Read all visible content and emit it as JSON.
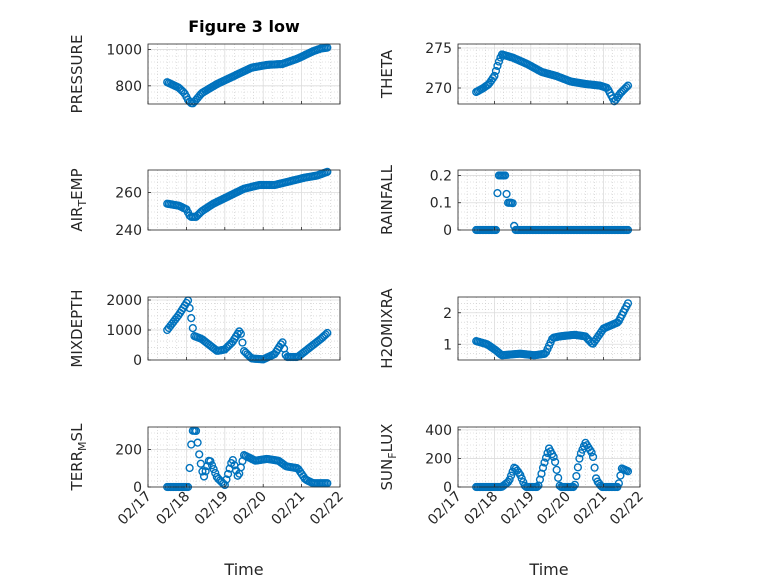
{
  "figure": {
    "title": "Figure 3 low",
    "marker_color": "#0072BD",
    "grid_major_color": "#dcdcdc",
    "grid_minor_color": "#c8c8c8",
    "background": "#ffffff"
  },
  "chart_data": [
    {
      "type": "scatter",
      "title": "Figure 3 low",
      "ylabel": "PRESSURE",
      "xlabel": "",
      "ylim": [
        700,
        1030
      ],
      "yticks": [
        800,
        1000
      ],
      "xlim": [
        "02/17",
        "02/22"
      ],
      "xticks": [
        "02/17",
        "02/18",
        "02/19",
        "02/20",
        "02/21",
        "02/22"
      ],
      "x_marker_step_days": 0.0417,
      "x_marker_start": "02/17 12:00",
      "series": [
        {
          "x_range": [
            "02/17 12:00",
            "02/21 16:00"
          ],
          "y_profile": [
            [
              0,
              820
            ],
            [
              0.1,
              810
            ],
            [
              0.3,
              790
            ],
            [
              0.45,
              760
            ],
            [
              0.55,
              720
            ],
            [
              0.65,
              700
            ],
            [
              0.72,
              715
            ],
            [
              0.9,
              760
            ],
            [
              1.3,
              810
            ],
            [
              1.8,
              860
            ],
            [
              2.2,
              900
            ],
            [
              2.6,
              915
            ],
            [
              3.0,
              920
            ],
            [
              3.4,
              950
            ],
            [
              3.8,
              990
            ],
            [
              4.0,
              1005
            ],
            [
              4.17,
              1010
            ]
          ]
        }
      ],
      "grid": true,
      "minor_grid": true
    },
    {
      "type": "scatter",
      "title": "",
      "ylabel": "THETA",
      "xlabel": "",
      "ylim": [
        268,
        275.5
      ],
      "yticks": [
        270,
        275
      ],
      "xlim": [
        "02/17",
        "02/22"
      ],
      "xticks": [
        "02/17",
        "02/18",
        "02/19",
        "02/20",
        "02/21",
        "02/22"
      ],
      "series": [
        {
          "x_range": [
            "02/17 12:00",
            "02/21 16:00"
          ],
          "y_profile": [
            [
              0,
              269.5
            ],
            [
              0.2,
              270
            ],
            [
              0.35,
              270.5
            ],
            [
              0.5,
              271.5
            ],
            [
              0.6,
              273
            ],
            [
              0.7,
              274.2
            ],
            [
              1.0,
              273.8
            ],
            [
              1.4,
              273
            ],
            [
              1.8,
              272
            ],
            [
              2.2,
              271.5
            ],
            [
              2.6,
              270.8
            ],
            [
              3.0,
              270.5
            ],
            [
              3.4,
              270.3
            ],
            [
              3.6,
              270
            ],
            [
              3.8,
              268.3
            ],
            [
              3.95,
              269.3
            ],
            [
              4.17,
              270.3
            ]
          ]
        }
      ],
      "grid": true,
      "minor_grid": true
    },
    {
      "type": "scatter",
      "title": "",
      "ylabel": "AIR_TEMP",
      "xlabel": "",
      "ylim": [
        240,
        272
      ],
      "yticks": [
        240,
        260
      ],
      "xlim": [
        "02/17",
        "02/22"
      ],
      "xticks": [
        "02/17",
        "02/18",
        "02/19",
        "02/20",
        "02/21",
        "02/22"
      ],
      "series": [
        {
          "x_range": [
            "02/17 12:00",
            "02/21 16:00"
          ],
          "y_profile": [
            [
              0,
              254
            ],
            [
              0.3,
              253
            ],
            [
              0.5,
              251
            ],
            [
              0.6,
              247
            ],
            [
              0.75,
              247
            ],
            [
              0.9,
              250
            ],
            [
              1.2,
              254
            ],
            [
              1.6,
              258
            ],
            [
              2.0,
              262
            ],
            [
              2.4,
              264
            ],
            [
              2.8,
              264
            ],
            [
              3.2,
              266
            ],
            [
              3.6,
              268
            ],
            [
              3.9,
              269
            ],
            [
              4.17,
              271
            ]
          ]
        }
      ],
      "grid": true,
      "minor_grid": true
    },
    {
      "type": "scatter",
      "title": "",
      "ylabel": "RAINFALL",
      "xlabel": "",
      "ylim": [
        0,
        0.22
      ],
      "yticks": [
        0,
        0.1,
        0.2
      ],
      "xlim": [
        "02/17",
        "02/22"
      ],
      "xticks": [
        "02/17",
        "02/18",
        "02/19",
        "02/20",
        "02/21",
        "02/22"
      ],
      "series": [
        {
          "x_range": [
            "02/17 12:00",
            "02/21 16:00"
          ],
          "y_profile": [
            [
              0,
              0
            ],
            [
              0.55,
              0
            ],
            [
              0.6,
              0.2
            ],
            [
              0.8,
              0.2
            ],
            [
              0.85,
              0.1
            ],
            [
              0.95,
              0.1
            ],
            [
              1.0,
              0.1
            ],
            [
              1.05,
              0
            ],
            [
              4.17,
              0
            ]
          ]
        }
      ],
      "grid": true,
      "minor_grid": true
    },
    {
      "type": "scatter",
      "title": "",
      "ylabel": "MIXDEPTH",
      "xlabel": "",
      "ylim": [
        0,
        2100
      ],
      "yticks": [
        0,
        1000,
        2000
      ],
      "xlim": [
        "02/17",
        "02/22"
      ],
      "xticks": [
        "02/17",
        "02/18",
        "02/19",
        "02/20",
        "02/21",
        "02/22"
      ],
      "series": [
        {
          "x_range": [
            "02/17 12:00",
            "02/21 16:00"
          ],
          "y_profile": [
            [
              0,
              1000
            ],
            [
              0.3,
              1500
            ],
            [
              0.55,
              2000
            ],
            [
              0.7,
              800
            ],
            [
              0.9,
              700
            ],
            [
              1.1,
              500
            ],
            [
              1.3,
              300
            ],
            [
              1.5,
              350
            ],
            [
              1.7,
              600
            ],
            [
              1.9,
              1000
            ],
            [
              2.0,
              300
            ],
            [
              2.2,
              50
            ],
            [
              2.5,
              20
            ],
            [
              2.8,
              200
            ],
            [
              3.0,
              600
            ],
            [
              3.1,
              100
            ],
            [
              3.4,
              100
            ],
            [
              3.7,
              400
            ],
            [
              4.0,
              700
            ],
            [
              4.17,
              900
            ]
          ]
        }
      ],
      "grid": true,
      "minor_grid": true
    },
    {
      "type": "scatter",
      "title": "",
      "ylabel": "H2OMIXRA",
      "xlabel": "",
      "ylim": [
        0.5,
        2.5
      ],
      "yticks": [
        1,
        2
      ],
      "xlim": [
        "02/17",
        "02/22"
      ],
      "xticks": [
        "02/17",
        "02/18",
        "02/19",
        "02/20",
        "02/21",
        "02/22"
      ],
      "series": [
        {
          "x_range": [
            "02/17 12:00",
            "02/21 16:00"
          ],
          "y_profile": [
            [
              0,
              1.1
            ],
            [
              0.3,
              1.0
            ],
            [
              0.55,
              0.8
            ],
            [
              0.7,
              0.65
            ],
            [
              1.2,
              0.7
            ],
            [
              1.6,
              0.65
            ],
            [
              1.9,
              0.7
            ],
            [
              2.1,
              1.2
            ],
            [
              2.3,
              1.25
            ],
            [
              2.7,
              1.3
            ],
            [
              3.0,
              1.25
            ],
            [
              3.2,
              1.0
            ],
            [
              3.5,
              1.5
            ],
            [
              3.9,
              1.7
            ],
            [
              4.17,
              2.3
            ]
          ]
        }
      ],
      "grid": true,
      "minor_grid": true
    },
    {
      "type": "scatter",
      "title": "",
      "ylabel": "TERR_MSL",
      "xlabel": "Time",
      "ylim": [
        0,
        320
      ],
      "yticks": [
        0,
        200
      ],
      "xlim": [
        "02/17",
        "02/22"
      ],
      "xticks": [
        "02/17",
        "02/18",
        "02/19",
        "02/20",
        "02/21",
        "02/22"
      ],
      "series": [
        {
          "x_range": [
            "02/17 12:00",
            "02/21 16:00"
          ],
          "y_profile": [
            [
              0,
              0
            ],
            [
              0.55,
              0
            ],
            [
              0.65,
              300
            ],
            [
              0.75,
              300
            ],
            [
              0.85,
              150
            ],
            [
              0.95,
              50
            ],
            [
              1.1,
              150
            ],
            [
              1.3,
              50
            ],
            [
              1.5,
              10
            ],
            [
              1.7,
              150
            ],
            [
              1.85,
              50
            ],
            [
              2.0,
              170
            ],
            [
              2.3,
              140
            ],
            [
              2.6,
              150
            ],
            [
              2.9,
              140
            ],
            [
              3.1,
              110
            ],
            [
              3.4,
              100
            ],
            [
              3.6,
              40
            ],
            [
              3.8,
              20
            ],
            [
              4.17,
              20
            ]
          ]
        }
      ],
      "grid": true,
      "minor_grid": true
    },
    {
      "type": "scatter",
      "title": "",
      "ylabel": "SUN_FLUX",
      "xlabel": "Time",
      "ylim": [
        0,
        420
      ],
      "yticks": [
        0,
        200,
        400
      ],
      "xlim": [
        "02/17",
        "02/22"
      ],
      "xticks": [
        "02/17",
        "02/18",
        "02/19",
        "02/20",
        "02/21",
        "02/22"
      ],
      "series": [
        {
          "x_range": [
            "02/17 12:00",
            "02/21 16:00"
          ],
          "y_profile": [
            [
              0,
              0
            ],
            [
              0.5,
              0
            ],
            [
              0.7,
              0
            ],
            [
              0.9,
              40
            ],
            [
              1.05,
              140
            ],
            [
              1.2,
              90
            ],
            [
              1.35,
              0
            ],
            [
              1.7,
              0
            ],
            [
              1.85,
              150
            ],
            [
              2.0,
              270
            ],
            [
              2.15,
              200
            ],
            [
              2.3,
              0
            ],
            [
              2.7,
              0
            ],
            [
              2.85,
              220
            ],
            [
              3.0,
              310
            ],
            [
              3.2,
              230
            ],
            [
              3.3,
              50
            ],
            [
              3.45,
              0
            ],
            [
              3.9,
              0
            ],
            [
              4.0,
              130
            ],
            [
              4.17,
              110
            ]
          ]
        }
      ],
      "grid": true,
      "minor_grid": true
    }
  ]
}
